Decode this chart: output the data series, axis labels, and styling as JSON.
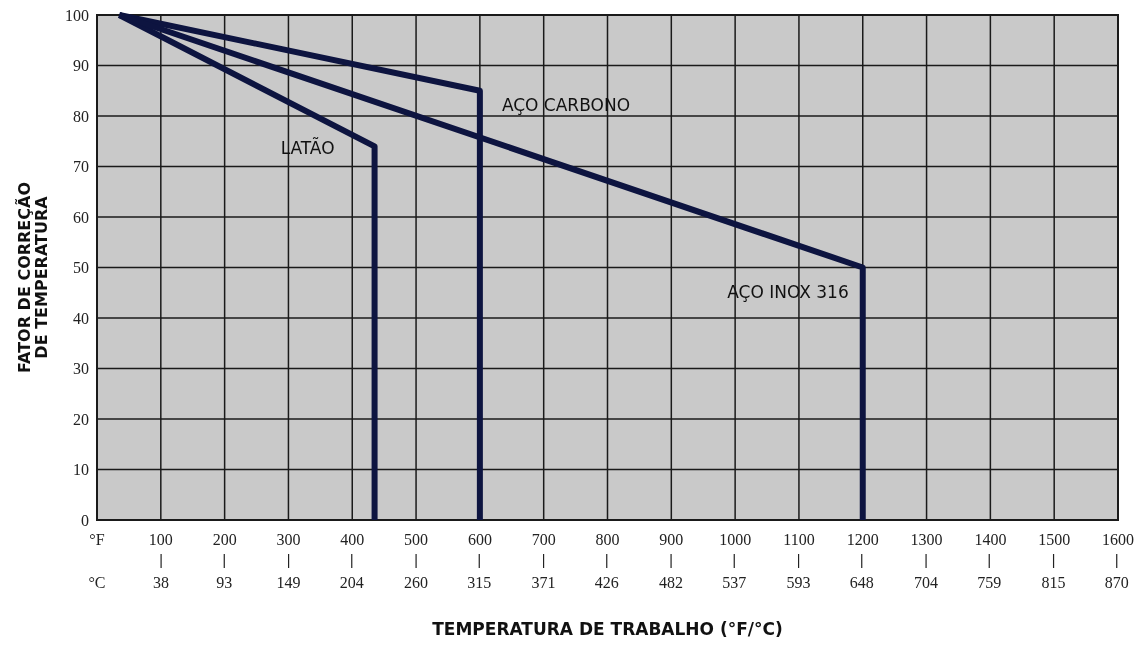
{
  "chart_data": {
    "type": "line",
    "xlabel": "TEMPERATURA DE TRABALHO (°F/°C)",
    "ylabel": "FATOR DE CORREÇÃO\nDE TEMPERATURA",
    "series": [
      {
        "color": "#0d1440",
        "x": [
          35,
          435,
          435
        ],
        "values": [
          100,
          74,
          0
        ]
      },
      {
        "color": "#0d1440",
        "x": [
          35,
          600,
          600
        ],
        "values": [
          100,
          85,
          0
        ]
      },
      {
        "color": "#0d1440",
        "x": [
          35,
          1200,
          1200
        ],
        "values": [
          100,
          50,
          0
        ]
      }
    ],
    "xlim": [
      0,
      1600
    ],
    "xticks": [
      {
        "value": 0,
        "label": "°F"
      },
      100,
      200,
      300,
      400,
      500,
      600,
      700,
      800,
      900,
      1000,
      1100,
      1200,
      1300,
      1400,
      1500,
      1600
    ],
    "x2lim": [
      -17.8,
      871.1
    ],
    "x2ticks": [
      {
        "value": -17.8,
        "label": "°C"
      },
      38,
      93,
      149,
      204,
      260,
      315,
      371,
      426,
      482,
      537,
      593,
      648,
      704,
      759,
      815,
      870
    ],
    "ylim": [
      0,
      100
    ],
    "yticks": [
      0,
      10,
      20,
      30,
      40,
      50,
      60,
      70,
      80,
      90,
      100
    ],
    "grid": true,
    "marker": "none",
    "line_style": "solid",
    "annotations": [
      {
        "text": "LATÃO",
        "x": 435,
        "y": 74
      },
      {
        "text": "AÇO CARBONO",
        "x": 600,
        "y": 85
      },
      {
        "text": "AÇO INOX 316",
        "x": 1200,
        "y": 50
      }
    ]
  }
}
